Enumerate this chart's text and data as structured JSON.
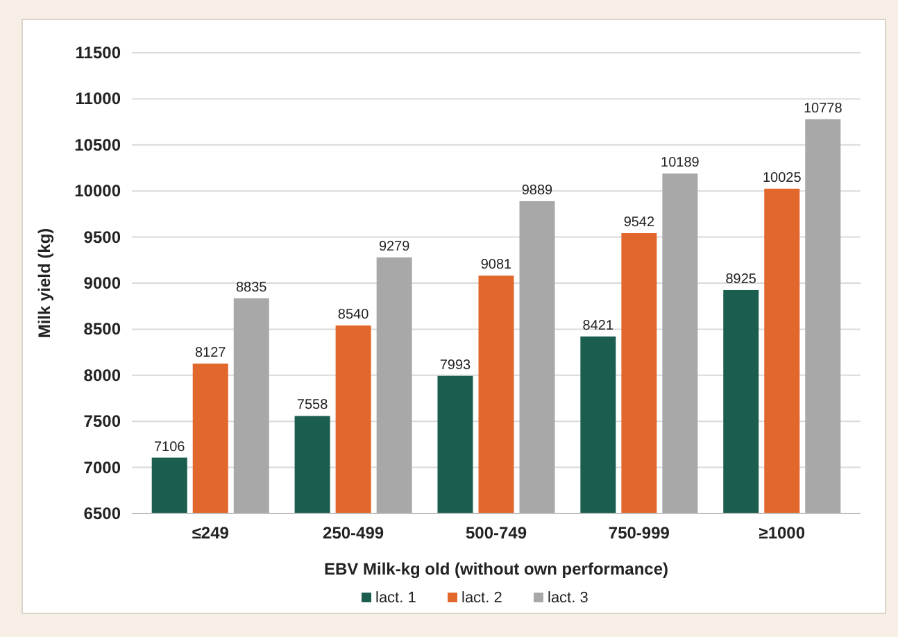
{
  "chart_data": {
    "type": "bar",
    "xlabel": "EBV Milk-kg old (without own performance)",
    "ylabel": "Milk yield (kg)",
    "categories": [
      "≤249",
      "250-499",
      "500-749",
      "750-999",
      "≥1000"
    ],
    "series": [
      {
        "name": "lact. 1",
        "color": "#1b5e50",
        "values": [
          7106,
          7558,
          7993,
          8421,
          8925
        ]
      },
      {
        "name": "lact. 2",
        "color": "#e2672c",
        "values": [
          8127,
          8540,
          9081,
          9542,
          10025
        ]
      },
      {
        "name": "lact. 3",
        "color": "#a8a8a8",
        "values": [
          8835,
          9279,
          9889,
          10189,
          10778
        ]
      }
    ],
    "ylim": [
      6500,
      11500
    ],
    "yticks": [
      6500,
      7000,
      7500,
      8000,
      8500,
      9000,
      9500,
      10000,
      10500,
      11000,
      11500
    ],
    "grid": "y",
    "legend": "bottom",
    "data_labels": true
  }
}
